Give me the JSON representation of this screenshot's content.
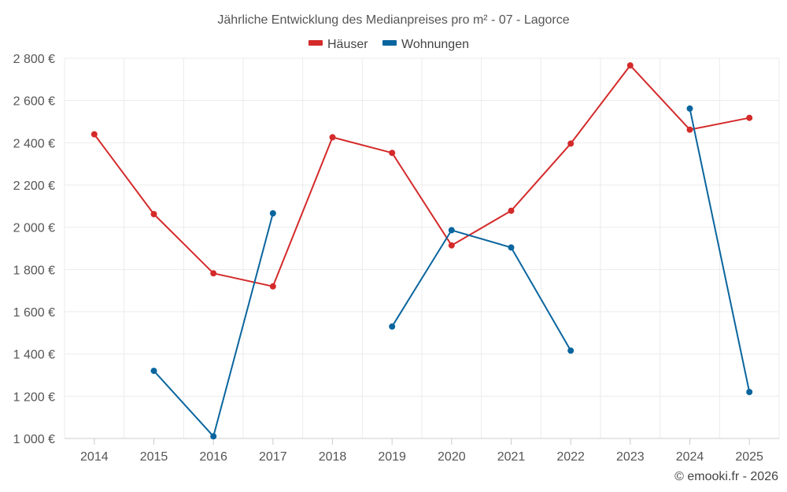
{
  "chart_data": {
    "type": "line",
    "title": "Jährliche Entwicklung des Medianpreises pro m² - 07 - Lagorce",
    "categories": [
      "2014",
      "2015",
      "2016",
      "2017",
      "2018",
      "2019",
      "2020",
      "2021",
      "2022",
      "2023",
      "2024",
      "2025"
    ],
    "ylim": [
      1000,
      2800
    ],
    "y_ticks": [
      1000,
      1200,
      1400,
      1600,
      1800,
      2000,
      2200,
      2400,
      2600,
      2800
    ],
    "y_tick_labels": [
      "1 000 €",
      "1 200 €",
      "1 400 €",
      "1 600 €",
      "1 800 €",
      "2 000 €",
      "2 200 €",
      "2 400 €",
      "2 600 €",
      "2 800 €"
    ],
    "xlabel": "",
    "ylabel": "",
    "grid": true,
    "legend_position": "top-center",
    "series": [
      {
        "name": "Häuser",
        "color": "#d42a2a",
        "values": [
          2440,
          2062,
          1782,
          1720,
          2426,
          2352,
          1914,
          2078,
          2396,
          2766,
          2462,
          2518
        ]
      },
      {
        "name": "Wohnungen",
        "color": "#0a659e",
        "values": [
          null,
          1320,
          1010,
          2066,
          null,
          1530,
          1986,
          1904,
          1416,
          null,
          2562,
          1220
        ]
      }
    ]
  },
  "credit": "© emooki.fr - 2026"
}
